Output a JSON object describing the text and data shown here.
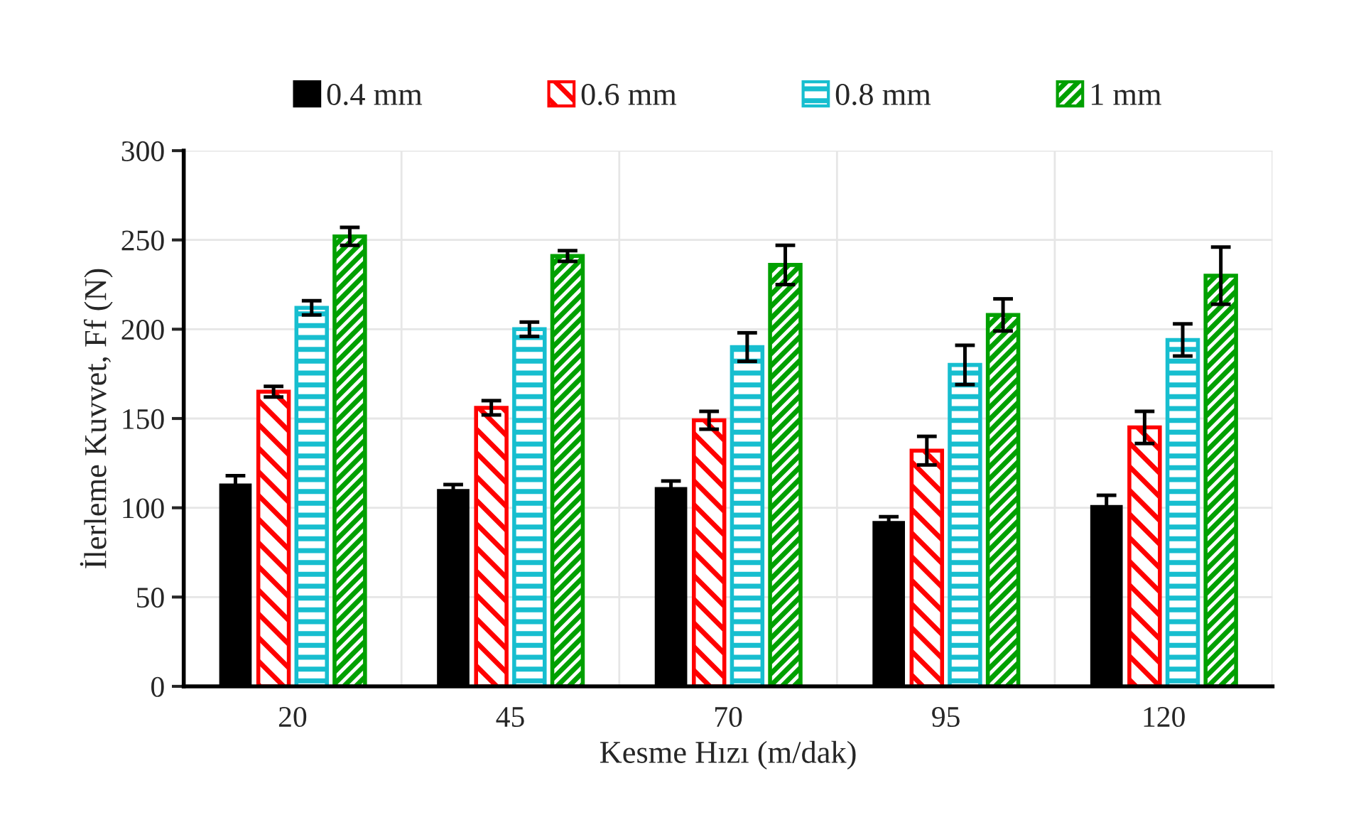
{
  "chart_data": {
    "type": "bar",
    "ylabel": "İlerleme Kuvvet, Ff (N)",
    "xlabel": "Kesme Hızı (m/dak)",
    "categories": [
      "20",
      "45",
      "70",
      "95",
      "120"
    ],
    "series": [
      {
        "name": "0.4 mm",
        "color": "#000000",
        "values": [
          113,
          110,
          111,
          92,
          101
        ],
        "errors": [
          5,
          3,
          4,
          3,
          6
        ]
      },
      {
        "name": "0.6 mm",
        "color": "#ff0000",
        "values": [
          165,
          156,
          149,
          132,
          145
        ],
        "errors": [
          3,
          4,
          5,
          8,
          9
        ]
      },
      {
        "name": "0.8 mm",
        "color": "#17becf",
        "values": [
          212,
          200,
          190,
          180,
          194
        ],
        "errors": [
          4,
          4,
          8,
          11,
          9
        ]
      },
      {
        "name": "1 mm",
        "color": "#00a000",
        "values": [
          252,
          241,
          236,
          208,
          230
        ],
        "errors": [
          5,
          3,
          11,
          9,
          16
        ]
      }
    ],
    "ylim": [
      0,
      300
    ],
    "yticks": [
      0,
      50,
      100,
      150,
      200,
      250,
      300
    ],
    "grid": true,
    "legend": "top"
  }
}
